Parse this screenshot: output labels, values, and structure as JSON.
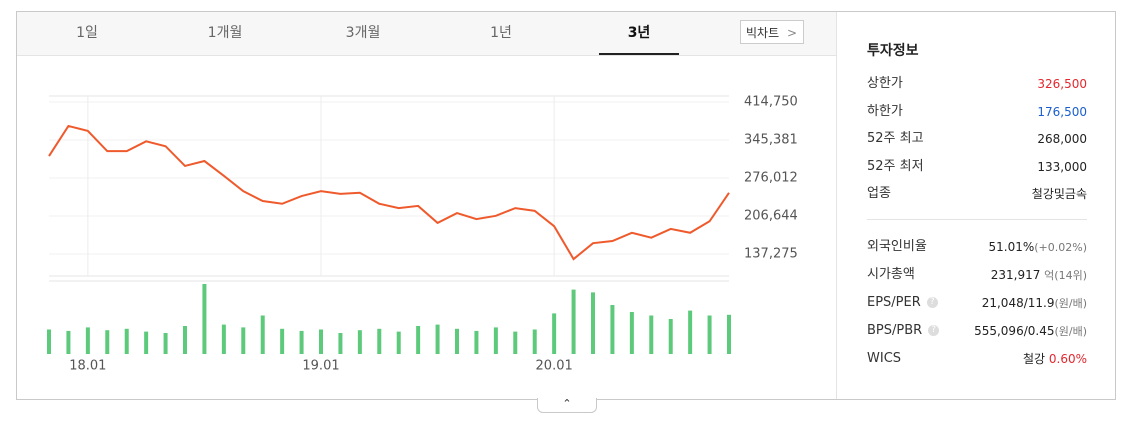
{
  "tabs": [
    "1일",
    "1개월",
    "3개월",
    "1년",
    "3년"
  ],
  "big_chart": "빅차트",
  "chart_data": [
    {
      "type": "line",
      "color": "#ef5a2c",
      "categories": [
        null,
        null,
        "18.01",
        null,
        null,
        null,
        null,
        null,
        null,
        null,
        null,
        null,
        null,
        null,
        "19.01",
        null,
        null,
        null,
        null,
        null,
        null,
        null,
        null,
        null,
        null,
        null,
        "20.01",
        null,
        null,
        null,
        null,
        null,
        null,
        null,
        null,
        null
      ],
      "values": [
        316000,
        371000,
        362000,
        325000,
        325000,
        343000,
        334000,
        298000,
        307000,
        280000,
        252000,
        234000,
        229000,
        243000,
        252000,
        247000,
        249000,
        229000,
        221000,
        225000,
        194000,
        212000,
        201000,
        207000,
        221000,
        216000,
        188000,
        128000,
        157000,
        161000,
        176000,
        167000,
        183000,
        176000,
        197000,
        249000
      ],
      "ylim": [
        97100,
        425700
      ],
      "yticks": [
        {
          "value": 414750,
          "label": "414,750"
        },
        {
          "value": 345381,
          "label": "345,381"
        },
        {
          "value": 276012,
          "label": "276,012"
        },
        {
          "value": 206644,
          "label": "206,644"
        },
        {
          "value": 137275,
          "label": "137,275"
        }
      ],
      "grid": true
    },
    {
      "type": "bar",
      "color": "#5cc97b",
      "values": [
        35,
        33,
        38,
        34,
        36,
        32,
        30,
        40,
        100,
        42,
        38,
        55,
        36,
        33,
        35,
        30,
        34,
        36,
        32,
        40,
        42,
        36,
        33,
        38,
        32,
        35,
        58,
        92,
        88,
        70,
        60,
        55,
        50,
        62,
        55,
        56
      ],
      "ylim": [
        0,
        100
      ]
    }
  ],
  "info": {
    "title": "투자정보",
    "rows": [
      {
        "label": "상한가",
        "value": "326,500"
      },
      {
        "label": "하한가",
        "value": "176,500"
      },
      {
        "label": "52주 최고",
        "value": "268,000"
      },
      {
        "label": "52주 최저",
        "value": "133,000"
      },
      {
        "label": "업종",
        "value": "철강및금속"
      }
    ],
    "rows2": [
      {
        "label": "외국인비율",
        "value": "51.01%",
        "note": "(+0.02%)"
      },
      {
        "label": "시가총액",
        "value": "231,917",
        "note": "억(14위)"
      },
      {
        "label": "EPS/PER",
        "value": "21,048/11.9",
        "note": "(원/배)"
      },
      {
        "label": "BPS/PBR",
        "value": "555,096/0.45",
        "note": "(원/배)"
      },
      {
        "label": "WICS",
        "value": "철강",
        "note": "0.60%"
      }
    ]
  }
}
